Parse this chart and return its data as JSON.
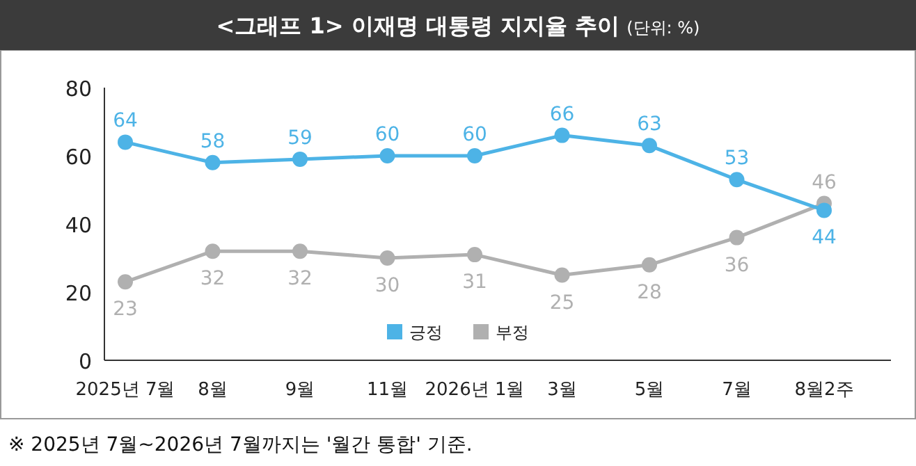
{
  "chart_data": {
    "type": "line",
    "title": "<그래프 1> 이재명 대통령 지지율 추이",
    "subtitle": "(단위: %)",
    "categories": [
      "2025년 7월",
      "8월",
      "9월",
      "11월",
      "2026년 1월",
      "3월",
      "5월",
      "7월",
      "8월2주"
    ],
    "series": [
      {
        "name": "긍정",
        "color": "#4db3e6",
        "values": [
          64,
          58,
          59,
          60,
          60,
          66,
          63,
          53,
          44
        ]
      },
      {
        "name": "부정",
        "color": "#b0b0b0",
        "values": [
          23,
          32,
          32,
          30,
          31,
          25,
          28,
          36,
          46
        ]
      }
    ],
    "ylim": [
      0,
      80
    ],
    "yticks": [
      0,
      20,
      40,
      60,
      80
    ],
    "grid": false,
    "legend": "bottom",
    "marker": "circle",
    "line_style": "solid",
    "data_labels": true,
    "annotations": [
      "※ 2025년 7월~2026년 7월까지는 '월간 통합' 기준."
    ]
  }
}
